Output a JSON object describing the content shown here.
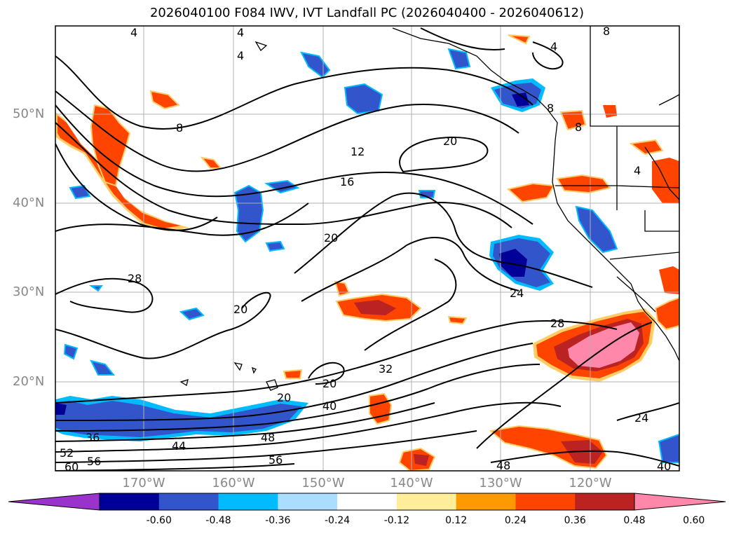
{
  "title": "2026040100 F084 IWV, IVT Landfall PC (2026040400 - 2026040612)",
  "map": {
    "projection": "PlateCarree",
    "lon_range": [
      "180°",
      "110°W"
    ],
    "lat_range": [
      "10°N",
      "60°N"
    ],
    "lat_labels": [
      "50°N",
      "40°N",
      "30°N",
      "20°N"
    ],
    "lon_labels": [
      "170°W",
      "160°W",
      "150°W",
      "140°W",
      "130°W",
      "120°W"
    ],
    "gridlines": true,
    "contour_labels": [
      "4",
      "4",
      "4",
      "4",
      "4",
      "8",
      "8",
      "8",
      "8",
      "12",
      "16",
      "20",
      "20",
      "20",
      "20",
      "20",
      "24",
      "24",
      "28",
      "28",
      "32",
      "36",
      "40",
      "40",
      "44",
      "48",
      "48",
      "52",
      "56",
      "56",
      "60"
    ]
  },
  "colorbar": {
    "ticks": [
      "-0.60",
      "-0.48",
      "-0.36",
      "-0.24",
      "-0.12",
      "0.12",
      "0.24",
      "0.36",
      "0.48",
      "0.60"
    ],
    "colors": [
      "#9933cc",
      "#000099",
      "#3355cc",
      "#00bbff",
      "#aaddff",
      "#ffffff",
      "#ffee99",
      "#ff9900",
      "#ff4400",
      "#bb2222",
      "#ff88aa"
    ],
    "extend": "both"
  }
}
